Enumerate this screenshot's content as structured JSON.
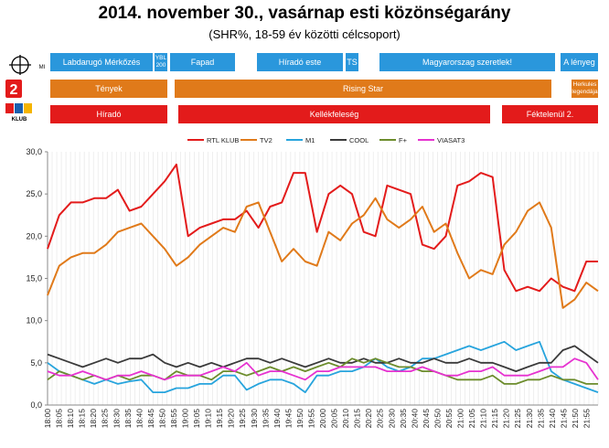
{
  "title": "2014. november 30., vasárnap esti közönségarány",
  "subtitle": "(SHR%, 18-59 év közötti célcsoport)",
  "channel_logos": [
    {
      "name": "M1",
      "text": "MI"
    },
    {
      "name": "TV2",
      "text": "2"
    },
    {
      "name": "RTL Klub",
      "text": "KLUB"
    }
  ],
  "schedule": {
    "m1": [
      {
        "label": "Labdarugó Mérkőzés",
        "start": "18:00",
        "end": "18:38"
      },
      {
        "label": "YBL 200",
        "start": "18:40",
        "end": "18:45"
      },
      {
        "label": "Fapad",
        "start": "18:48",
        "end": "19:10"
      },
      {
        "label": "Híradó este",
        "start": "19:15",
        "end": "19:45"
      },
      {
        "label": "TS",
        "start": "19:47",
        "end": "19:52"
      },
      {
        "label": "Magyarorszag szeretlek!",
        "start": "19:53",
        "end": "21:40"
      },
      {
        "label": "A lényeg",
        "start": "21:43",
        "end": "22:00"
      }
    ],
    "tv2": [
      {
        "label": "Tények",
        "start": "18:00",
        "end": "18:53"
      },
      {
        "label": "Rising Star",
        "start": "18:55",
        "end": "21:55"
      },
      {
        "label": "Herkules legendája",
        "start": "21:55",
        "end": "22:00"
      }
    ],
    "rtl": [
      {
        "label": "Híradó",
        "start": "18:00",
        "end": "18:53"
      },
      {
        "label": "Kellékfeleség",
        "start": "18:55",
        "end": "21:17"
      },
      {
        "label": "Féktelenül 2.",
        "start": "21:20",
        "end": "22:00"
      }
    ]
  },
  "colors": {
    "rtl": "#e31b1b",
    "tv2": "#e07a1a",
    "m1": "#27a4dd",
    "cool": "#3a3a3a",
    "fplus": "#6c8c2c",
    "viasat3": "#e632d0"
  },
  "chart_data": {
    "type": "line",
    "title": "",
    "xlabel": "",
    "ylabel": "",
    "ylim": [
      0,
      30
    ],
    "yticks": [
      "0,0",
      "5,0",
      "10,0",
      "15,0",
      "20,0",
      "25,0",
      "30,0"
    ],
    "x_start": "18:00",
    "x_end": "22:00",
    "x_step_minutes": 5,
    "xticks": [
      "18:00",
      "18:05",
      "18:10",
      "18:15",
      "18:20",
      "18:25",
      "18:30",
      "18:35",
      "18:40",
      "18:45",
      "18:50",
      "18:55",
      "19:00",
      "19:05",
      "19:10",
      "19:15",
      "19:20",
      "19:25",
      "19:30",
      "19:35",
      "19:40",
      "19:45",
      "19:50",
      "19:55",
      "20:00",
      "20:05",
      "20:10",
      "20:15",
      "20:20",
      "20:25",
      "20:30",
      "20:35",
      "20:40",
      "20:45",
      "20:50",
      "20:55",
      "21:00",
      "21:05",
      "21:10",
      "21:15",
      "21:20",
      "21:25",
      "21:30",
      "21:35",
      "21:40",
      "21:45",
      "21:50",
      "21:55"
    ],
    "grid": "vertical",
    "legend_position": "top",
    "series": [
      {
        "name": "RTL KLUB",
        "color": "#e31b1b",
        "values": [
          18.5,
          22.5,
          24.0,
          24.0,
          24.5,
          24.5,
          25.5,
          23.0,
          23.5,
          25.0,
          26.5,
          28.5,
          20.0,
          21.0,
          21.5,
          22.0,
          22.0,
          23.0,
          21.0,
          23.5,
          24.0,
          27.5,
          27.5,
          20.5,
          25.0,
          26.0,
          25.0,
          20.5,
          20.0,
          26.0,
          25.5,
          25.0,
          19.0,
          18.5,
          20.0,
          26.0,
          26.5,
          27.5,
          27.0,
          16.0,
          13.5,
          14.0,
          13.5,
          15.0,
          14.0,
          13.5,
          17.0,
          17.0
        ]
      },
      {
        "name": "TV2",
        "color": "#e07a1a",
        "values": [
          13.0,
          16.5,
          17.5,
          18.0,
          18.0,
          19.0,
          20.5,
          21.0,
          21.5,
          20.0,
          18.5,
          16.5,
          17.5,
          19.0,
          20.0,
          21.0,
          20.5,
          23.5,
          24.0,
          20.5,
          17.0,
          18.5,
          17.0,
          16.5,
          20.5,
          19.5,
          21.5,
          22.5,
          24.5,
          22.0,
          21.0,
          22.0,
          23.5,
          20.5,
          21.5,
          18.0,
          15.0,
          16.0,
          15.5,
          19.0,
          20.5,
          23.0,
          24.0,
          21.0,
          11.5,
          12.5,
          14.5,
          13.5
        ]
      },
      {
        "name": "M1",
        "color": "#27a4dd",
        "values": [
          5.0,
          4.0,
          3.5,
          3.0,
          2.5,
          3.0,
          2.5,
          2.8,
          3.0,
          1.5,
          1.5,
          2.0,
          2.0,
          2.5,
          2.5,
          3.5,
          3.5,
          1.8,
          2.5,
          3.0,
          3.0,
          2.5,
          1.5,
          3.5,
          3.5,
          4.0,
          4.0,
          4.5,
          5.5,
          4.5,
          4.0,
          4.5,
          5.5,
          5.5,
          6.0,
          6.5,
          7.0,
          6.5,
          7.0,
          7.5,
          6.5,
          7.0,
          7.5,
          4.0,
          3.0,
          2.5,
          2.0,
          1.5
        ]
      },
      {
        "name": "COOL",
        "color": "#3a3a3a",
        "values": [
          6.0,
          5.5,
          5.0,
          4.5,
          5.0,
          5.5,
          5.0,
          5.5,
          5.5,
          6.0,
          5.0,
          4.5,
          5.0,
          4.5,
          5.0,
          4.5,
          5.0,
          5.5,
          5.5,
          5.0,
          5.5,
          5.0,
          4.5,
          5.0,
          5.5,
          5.0,
          5.0,
          5.5,
          5.0,
          5.0,
          5.5,
          5.0,
          5.0,
          5.5,
          5.0,
          5.0,
          5.5,
          5.0,
          5.0,
          4.5,
          4.0,
          4.5,
          5.0,
          5.0,
          6.5,
          7.0,
          6.0,
          5.0
        ]
      },
      {
        "name": "F+",
        "color": "#6c8c2c",
        "values": [
          3.0,
          4.0,
          3.5,
          3.0,
          3.5,
          3.0,
          3.5,
          3.0,
          3.5,
          3.5,
          3.0,
          4.0,
          3.5,
          3.5,
          3.0,
          4.0,
          4.0,
          3.5,
          4.0,
          4.5,
          4.0,
          4.5,
          4.0,
          4.5,
          5.0,
          4.5,
          5.5,
          5.0,
          5.5,
          5.0,
          4.5,
          4.5,
          4.0,
          4.0,
          3.5,
          3.0,
          3.0,
          3.0,
          3.5,
          2.5,
          2.5,
          3.0,
          3.0,
          3.5,
          3.0,
          3.0,
          2.5,
          2.5
        ]
      },
      {
        "name": "VIASAT3",
        "color": "#e632d0",
        "values": [
          4.0,
          3.5,
          3.5,
          4.0,
          3.5,
          3.0,
          3.5,
          3.5,
          4.0,
          3.5,
          3.0,
          3.5,
          3.5,
          3.5,
          4.0,
          4.5,
          4.0,
          5.0,
          3.5,
          4.0,
          4.0,
          3.5,
          3.0,
          4.0,
          4.0,
          4.5,
          4.5,
          4.5,
          4.5,
          4.0,
          4.0,
          4.0,
          4.5,
          4.0,
          3.5,
          3.5,
          4.0,
          4.0,
          4.5,
          3.5,
          3.5,
          3.5,
          4.0,
          4.5,
          4.5,
          5.5,
          5.0,
          3.0
        ]
      }
    ]
  }
}
